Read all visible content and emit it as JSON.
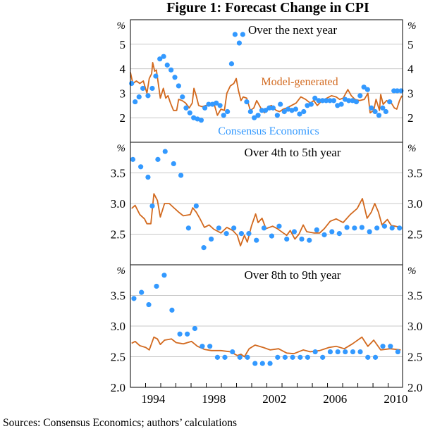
{
  "title": "Figure 1: Forecast Change in CPI",
  "sources": "Sources:  Consensus Economics; authors’ calculations",
  "colors": {
    "model": "#D2691E",
    "consensus": "#3399FF",
    "grid": "#C8C8C8"
  },
  "chart_data": [
    {
      "type": "line+scatter",
      "title": "Over the next year",
      "unit": "%",
      "ylim": [
        1,
        6
      ],
      "yticks": [
        2,
        3,
        4,
        5
      ],
      "xlim": [
        1993.0,
        2010.95
      ],
      "grid": true,
      "annotations": [
        {
          "text": "Model-generated",
          "series": "model"
        },
        {
          "text": "Consensus Economics",
          "series": "consensus"
        }
      ],
      "series": [
        {
          "name": "Model-generated",
          "kind": "line",
          "x": [
            1993.0,
            1993.16,
            1993.39,
            1993.62,
            1993.85,
            1994.09,
            1994.24,
            1994.4,
            1994.47,
            1994.6,
            1994.71,
            1994.86,
            1994.97,
            1995.17,
            1995.33,
            1995.48,
            1995.64,
            1995.84,
            1996.05,
            1996.18,
            1996.41,
            1996.64,
            1996.88,
            1997.08,
            1997.19,
            1997.34,
            1997.5,
            1997.73,
            1997.96,
            1998.19,
            1998.5,
            1998.74,
            1998.97,
            1999.2,
            1999.36,
            1999.59,
            1999.82,
            1999.98,
            2000.13,
            2000.29,
            2000.44,
            2000.67,
            2000.91,
            2001.14,
            2001.33,
            2001.6,
            2001.84,
            2002.07,
            2002.3,
            2002.61,
            2002.84,
            2003.08,
            2003.31,
            2003.62,
            2003.93,
            2004.24,
            2004.55,
            2004.86,
            2005.09,
            2005.33,
            2005.64,
            2005.95,
            2006.26,
            2006.57,
            2006.8,
            2007.03,
            2007.34,
            2007.57,
            2007.81,
            2008.12,
            2008.43,
            2008.66,
            2008.81,
            2009.05,
            2009.2,
            2009.43,
            2009.51,
            2009.67,
            2009.9,
            2010.21,
            2010.41,
            2010.57,
            2010.75,
            2010.91
          ],
          "y": [
            3.85,
            3.4,
            3.5,
            3.4,
            3.5,
            3.0,
            3.6,
            3.8,
            4.25,
            3.9,
            3.95,
            3.3,
            2.8,
            3.2,
            2.8,
            2.9,
            2.6,
            2.3,
            2.3,
            2.75,
            2.7,
            2.6,
            2.4,
            2.6,
            3.2,
            2.9,
            2.5,
            2.45,
            2.5,
            2.5,
            2.6,
            2.1,
            2.35,
            2.3,
            3.0,
            3.3,
            3.4,
            3.6,
            3.1,
            2.7,
            2.85,
            2.8,
            2.3,
            2.4,
            2.7,
            2.4,
            2.2,
            2.45,
            2.5,
            2.3,
            2.25,
            2.35,
            2.4,
            2.5,
            2.6,
            2.85,
            2.75,
            2.6,
            2.7,
            2.5,
            2.7,
            2.8,
            2.9,
            2.85,
            2.75,
            2.8,
            3.15,
            2.9,
            2.75,
            2.7,
            2.75,
            3.0,
            2.2,
            2.3,
            2.75,
            2.3,
            2.95,
            2.55,
            2.7,
            2.6,
            2.4,
            2.35,
            2.7,
            2.9
          ]
        },
        {
          "name": "Consensus Economics",
          "kind": "scatter",
          "x": [
            1993.08,
            1993.31,
            1993.57,
            1993.82,
            1994.16,
            1994.44,
            1994.67,
            1994.94,
            1995.19,
            1995.43,
            1995.68,
            1995.93,
            1996.18,
            1996.43,
            1996.67,
            1996.92,
            1997.17,
            1997.42,
            1997.67,
            1997.91,
            1998.16,
            1998.41,
            1998.66,
            1998.91,
            1999.15,
            1999.4,
            1999.67,
            1999.9,
            2000.18,
            2000.41,
            2000.67,
            2000.92,
            2001.17,
            2001.42,
            2001.67,
            2001.91,
            2002.16,
            2002.41,
            2002.69,
            2002.89,
            2003.15,
            2003.4,
            2003.65,
            2003.9,
            2004.16,
            2004.43,
            2004.67,
            2004.92,
            2005.17,
            2005.42,
            2005.67,
            2005.91,
            2006.16,
            2006.41,
            2006.66,
            2006.91,
            2007.16,
            2007.4,
            2007.65,
            2007.9,
            2008.15,
            2008.4,
            2008.64,
            2008.89,
            2009.14,
            2009.39,
            2009.64,
            2009.85,
            2010.1,
            2010.38,
            2010.6,
            2010.85
          ],
          "y": [
            3.4,
            2.65,
            2.85,
            3.2,
            2.9,
            3.2,
            3.7,
            4.4,
            4.5,
            4.15,
            3.95,
            3.65,
            3.3,
            2.85,
            2.4,
            2.2,
            2.0,
            1.95,
            1.9,
            2.4,
            2.55,
            2.55,
            2.6,
            2.5,
            2.1,
            2.25,
            4.2,
            5.4,
            5.05,
            5.4,
            2.65,
            2.25,
            2.0,
            2.1,
            2.3,
            2.3,
            2.4,
            2.4,
            2.1,
            2.55,
            2.25,
            2.35,
            2.3,
            2.35,
            2.15,
            2.25,
            2.5,
            2.55,
            2.8,
            2.7,
            2.7,
            2.7,
            2.7,
            2.7,
            2.5,
            2.55,
            2.75,
            2.7,
            2.7,
            2.65,
            2.9,
            3.25,
            3.15,
            2.4,
            2.25,
            2.1,
            2.4,
            2.25,
            2.65,
            3.1,
            3.1,
            3.1
          ]
        }
      ]
    },
    {
      "type": "line+scatter",
      "title": "Over 4th to 5th year",
      "unit": "%",
      "ylim": [
        2,
        4
      ],
      "yticks": [
        2.5,
        3.0,
        3.5
      ],
      "xlim": [
        1993.0,
        2010.95
      ],
      "grid": true,
      "series": [
        {
          "name": "Model-generated",
          "kind": "line",
          "x": [
            1993.08,
            1993.31,
            1993.62,
            1993.93,
            1994.09,
            1994.35,
            1994.55,
            1994.78,
            1994.97,
            1995.25,
            1995.56,
            1995.87,
            1996.18,
            1996.49,
            1996.95,
            1997.11,
            1997.34,
            1997.57,
            1997.88,
            1998.19,
            1998.5,
            1998.97,
            1999.36,
            1999.75,
            2000.05,
            2000.26,
            2000.52,
            2000.71,
            2000.98,
            2001.26,
            2001.42,
            2001.68,
            2001.94,
            2002.38,
            2002.69,
            2003.08,
            2003.31,
            2003.54,
            2003.85,
            2004.12,
            2004.4,
            2004.63,
            2005.09,
            2005.48,
            2005.79,
            2006.18,
            2006.57,
            2007.03,
            2007.5,
            2007.96,
            2008.3,
            2008.61,
            2008.89,
            2009.12,
            2009.36,
            2009.59,
            2009.95,
            2010.21,
            2010.47,
            2010.83
          ],
          "y": [
            2.92,
            2.97,
            2.82,
            2.75,
            2.67,
            2.67,
            3.16,
            3.05,
            2.78,
            3.0,
            3.0,
            2.93,
            2.86,
            2.8,
            2.82,
            2.93,
            2.86,
            2.76,
            2.61,
            2.65,
            2.58,
            2.52,
            2.61,
            2.56,
            2.48,
            2.31,
            2.48,
            2.37,
            2.63,
            2.83,
            2.69,
            2.76,
            2.59,
            2.63,
            2.59,
            2.52,
            2.48,
            2.56,
            2.42,
            2.5,
            2.65,
            2.54,
            2.52,
            2.52,
            2.59,
            2.71,
            2.75,
            2.69,
            2.82,
            2.92,
            3.08,
            2.76,
            2.86,
            3.0,
            2.86,
            2.65,
            2.74,
            2.64,
            2.63,
            2.61
          ]
        },
        {
          "name": "Consensus Economics",
          "kind": "scatter",
          "x": [
            1993.16,
            1993.68,
            1994.16,
            1994.44,
            1994.81,
            1995.29,
            1995.85,
            1996.33,
            1996.83,
            1997.34,
            1997.84,
            1998.33,
            1998.83,
            1999.33,
            1999.82,
            2000.32,
            2000.81,
            2001.31,
            2001.81,
            2002.32,
            2002.81,
            2003.31,
            2003.81,
            2004.3,
            2004.8,
            2005.29,
            2005.79,
            2006.29,
            2006.78,
            2007.28,
            2007.78,
            2008.27,
            2008.77,
            2009.26,
            2009.76,
            2010.26,
            2010.75
          ],
          "y": [
            3.72,
            3.6,
            3.43,
            2.96,
            3.72,
            3.85,
            3.65,
            3.46,
            2.6,
            2.96,
            2.28,
            2.42,
            2.6,
            2.51,
            2.6,
            2.51,
            2.51,
            2.4,
            2.6,
            2.47,
            2.63,
            2.42,
            2.54,
            2.42,
            2.4,
            2.57,
            2.49,
            2.54,
            2.51,
            2.61,
            2.6,
            2.61,
            2.54,
            2.6,
            2.63,
            2.6,
            2.6
          ]
        }
      ]
    },
    {
      "type": "line+scatter",
      "title": "Over 8th to 9th year",
      "unit": "%",
      "ylim": [
        2,
        4
      ],
      "yticks": [
        2.0,
        2.5,
        3.0,
        3.5
      ],
      "xlim": [
        1993.0,
        2010.95
      ],
      "xticks": [
        1994,
        1998,
        2002,
        2006,
        2010
      ],
      "grid": true,
      "series": [
        {
          "name": "Model-generated",
          "kind": "line",
          "x": [
            1993.08,
            1993.31,
            1993.62,
            1994.01,
            1994.24,
            1994.55,
            1994.78,
            1994.97,
            1995.25,
            1995.71,
            1996.02,
            1996.49,
            1997.03,
            1997.42,
            1997.88,
            1998.35,
            1998.97,
            1999.59,
            2000.05,
            2000.29,
            2000.52,
            2000.83,
            2001.22,
            2001.76,
            2002.22,
            2002.77,
            2003.31,
            2003.78,
            2004.4,
            2004.86,
            2005.48,
            2006.1,
            2006.57,
            2007.11,
            2007.65,
            2008.27,
            2008.66,
            2009.05,
            2009.51,
            2010.13,
            2010.83
          ],
          "y": [
            2.72,
            2.75,
            2.68,
            2.65,
            2.61,
            2.82,
            2.79,
            2.7,
            2.77,
            2.79,
            2.73,
            2.71,
            2.75,
            2.67,
            2.62,
            2.6,
            2.6,
            2.58,
            2.52,
            2.54,
            2.5,
            2.63,
            2.69,
            2.65,
            2.61,
            2.63,
            2.56,
            2.55,
            2.61,
            2.58,
            2.6,
            2.65,
            2.67,
            2.63,
            2.71,
            2.82,
            2.67,
            2.77,
            2.61,
            2.63,
            2.61
          ]
        },
        {
          "name": "Consensus Economics",
          "kind": "scatter",
          "x": [
            1993.23,
            1993.73,
            1994.21,
            1994.72,
            1995.23,
            1995.74,
            1996.26,
            1996.75,
            1997.25,
            1997.74,
            1998.24,
            1998.74,
            1999.23,
            1999.73,
            2000.22,
            2000.72,
            2001.22,
            2001.71,
            2002.21,
            2002.71,
            2003.2,
            2003.7,
            2004.2,
            2004.69,
            2005.19,
            2005.68,
            2006.18,
            2006.68,
            2007.17,
            2007.67,
            2008.16,
            2008.66,
            2009.16,
            2009.65,
            2010.15,
            2010.64
          ],
          "y": [
            3.45,
            3.55,
            3.35,
            3.65,
            3.83,
            3.26,
            2.87,
            2.87,
            2.96,
            2.67,
            2.67,
            2.49,
            2.49,
            2.58,
            2.49,
            2.49,
            2.39,
            2.39,
            2.39,
            2.49,
            2.49,
            2.49,
            2.49,
            2.49,
            2.58,
            2.49,
            2.58,
            2.58,
            2.58,
            2.58,
            2.58,
            2.49,
            2.49,
            2.67,
            2.67,
            2.58
          ]
        }
      ]
    }
  ]
}
